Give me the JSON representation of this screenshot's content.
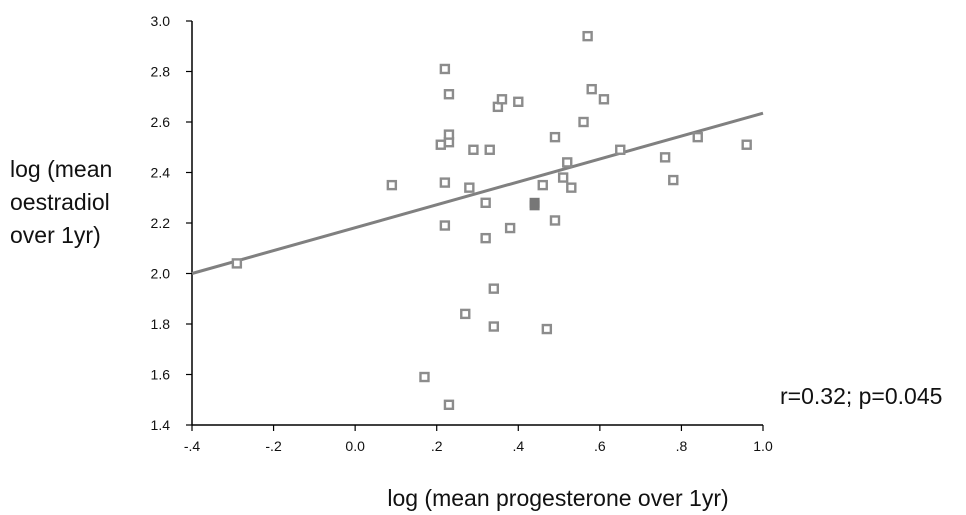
{
  "chart_data": {
    "type": "scatter",
    "title": "",
    "xlabel": "log (mean progesterone over 1yr)",
    "ylabel_lines": [
      "log (mean",
      "oestradiol",
      "over 1yr)"
    ],
    "annotation": "r=0.32; p=0.045",
    "xlim": [
      -0.4,
      1.0
    ],
    "ylim": [
      1.4,
      3.0
    ],
    "x_ticks": [
      -0.4,
      -0.2,
      0.0,
      0.2,
      0.4,
      0.6,
      0.8,
      1.0
    ],
    "x_tick_labels": [
      "-.4",
      "-.2",
      "0.0",
      ".2",
      ".4",
      ".6",
      ".8",
      "1.0"
    ],
    "y_ticks": [
      1.4,
      1.6,
      1.8,
      2.0,
      2.2,
      2.4,
      2.6,
      2.8,
      3.0
    ],
    "y_tick_labels": [
      "1.4",
      "1.6",
      "1.8",
      "2.0",
      "2.2",
      "2.4",
      "2.6",
      "2.8",
      "3.0"
    ],
    "grid": false,
    "points": [
      {
        "x": -0.29,
        "y": 2.04
      },
      {
        "x": 0.09,
        "y": 2.35
      },
      {
        "x": 0.17,
        "y": 1.59
      },
      {
        "x": 0.21,
        "y": 2.51
      },
      {
        "x": 0.22,
        "y": 2.81
      },
      {
        "x": 0.22,
        "y": 2.36
      },
      {
        "x": 0.22,
        "y": 2.19
      },
      {
        "x": 0.23,
        "y": 2.52
      },
      {
        "x": 0.23,
        "y": 2.55
      },
      {
        "x": 0.23,
        "y": 2.71
      },
      {
        "x": 0.23,
        "y": 1.48
      },
      {
        "x": 0.27,
        "y": 1.84
      },
      {
        "x": 0.28,
        "y": 2.34
      },
      {
        "x": 0.29,
        "y": 2.49
      },
      {
        "x": 0.32,
        "y": 2.28
      },
      {
        "x": 0.32,
        "y": 2.14
      },
      {
        "x": 0.33,
        "y": 2.49
      },
      {
        "x": 0.34,
        "y": 1.94
      },
      {
        "x": 0.34,
        "y": 1.79
      },
      {
        "x": 0.35,
        "y": 2.66
      },
      {
        "x": 0.36,
        "y": 2.69
      },
      {
        "x": 0.38,
        "y": 2.18
      },
      {
        "x": 0.4,
        "y": 2.68
      },
      {
        "x": 0.44,
        "y": 2.28,
        "filled": true
      },
      {
        "x": 0.44,
        "y": 2.27,
        "filled": true
      },
      {
        "x": 0.46,
        "y": 2.35
      },
      {
        "x": 0.47,
        "y": 1.78
      },
      {
        "x": 0.49,
        "y": 2.54
      },
      {
        "x": 0.49,
        "y": 2.21
      },
      {
        "x": 0.51,
        "y": 2.38
      },
      {
        "x": 0.52,
        "y": 2.44
      },
      {
        "x": 0.53,
        "y": 2.34
      },
      {
        "x": 0.56,
        "y": 2.6
      },
      {
        "x": 0.57,
        "y": 2.94
      },
      {
        "x": 0.58,
        "y": 2.73
      },
      {
        "x": 0.61,
        "y": 2.69
      },
      {
        "x": 0.65,
        "y": 2.49
      },
      {
        "x": 0.76,
        "y": 2.46
      },
      {
        "x": 0.78,
        "y": 2.37
      },
      {
        "x": 0.84,
        "y": 2.54
      },
      {
        "x": 0.96,
        "y": 2.51
      }
    ],
    "fit_line": {
      "x": [
        -0.4,
        1.0
      ],
      "y": [
        2.0,
        2.635
      ]
    },
    "colors": {
      "marker": "#8c8c8c",
      "line": "#808080",
      "axis": "#000000"
    }
  }
}
